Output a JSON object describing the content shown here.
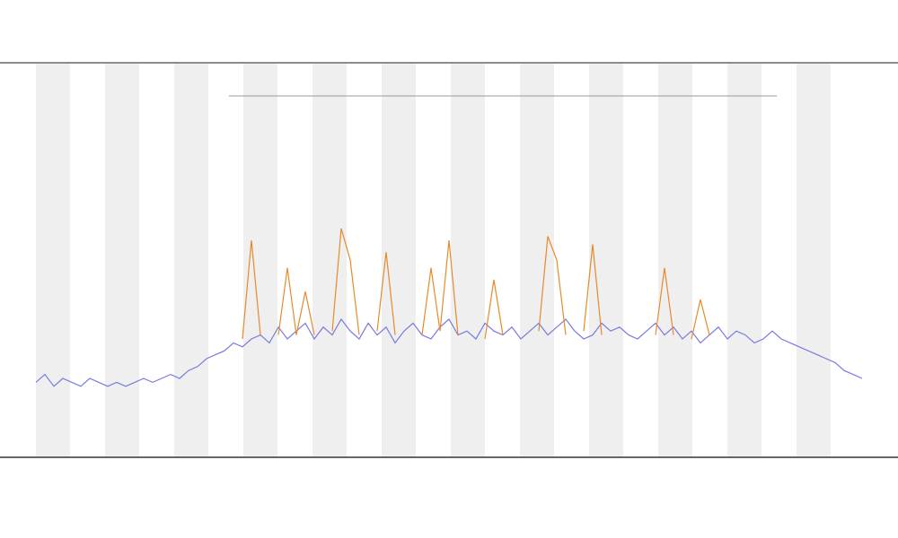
{
  "chart_data": {
    "type": "line",
    "x": [
      0,
      1,
      2,
      3,
      4,
      5,
      6,
      7,
      8,
      9,
      10,
      11,
      12,
      13,
      14,
      15,
      16,
      17,
      18,
      19,
      20,
      21,
      22,
      23,
      24,
      25,
      26,
      27,
      28,
      29,
      30,
      31,
      32,
      33,
      34,
      35,
      36,
      37,
      38,
      39,
      40,
      41,
      42,
      43,
      44,
      45,
      46,
      47,
      48,
      49,
      50,
      51,
      52,
      53,
      54,
      55,
      56,
      57,
      58,
      59,
      60,
      61,
      62,
      63,
      64,
      65,
      66,
      67,
      68,
      69,
      70,
      71,
      72,
      73,
      74,
      75,
      76,
      77,
      78,
      79,
      80,
      81,
      82,
      83,
      84,
      85,
      86,
      87,
      88,
      89,
      90,
      91,
      92
    ],
    "xlim": [
      0,
      92
    ],
    "ylim": [
      0,
      100
    ],
    "series": [
      {
        "color": "#7a7ae0",
        "values": [
          19,
          21,
          18,
          20,
          19,
          18,
          20,
          19,
          18,
          19,
          18,
          19,
          20,
          19,
          20,
          21,
          20,
          22,
          23,
          25,
          26,
          27,
          29,
          28,
          30,
          31,
          29,
          33,
          30,
          32,
          34,
          30,
          33,
          31,
          35,
          32,
          30,
          34,
          31,
          33,
          29,
          32,
          34,
          31,
          30,
          33,
          35,
          31,
          32,
          30,
          34,
          32,
          31,
          33,
          30,
          32,
          34,
          31,
          33,
          35,
          32,
          30,
          31,
          34,
          32,
          33,
          31,
          30,
          32,
          34,
          31,
          33,
          30,
          32,
          29,
          31,
          33,
          30,
          32,
          31,
          29,
          30,
          32,
          30,
          29,
          28,
          27,
          26,
          25,
          24,
          22,
          21,
          20
        ]
      },
      {
        "color": "#e8892a",
        "values": [
          null,
          null,
          null,
          null,
          null,
          null,
          null,
          null,
          null,
          null,
          null,
          null,
          null,
          null,
          null,
          null,
          null,
          null,
          null,
          null,
          null,
          null,
          null,
          30,
          55,
          31,
          null,
          31,
          48,
          31,
          42,
          31,
          null,
          32,
          58,
          50,
          31,
          null,
          32,
          52,
          31,
          null,
          null,
          31,
          48,
          32,
          55,
          31,
          null,
          null,
          30,
          45,
          31,
          null,
          null,
          null,
          32,
          56,
          50,
          31,
          null,
          32,
          54,
          31,
          null,
          null,
          null,
          null,
          null,
          31,
          48,
          31,
          null,
          30,
          40,
          31,
          null,
          null,
          null,
          null,
          null,
          null,
          null,
          null,
          null,
          null,
          null,
          null,
          null,
          null,
          null,
          null,
          null
        ]
      }
    ]
  }
}
